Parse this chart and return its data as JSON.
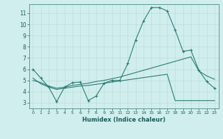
{
  "title": "",
  "xlabel": "Humidex (Indice chaleur)",
  "ylabel": "",
  "bg_color": "#d0eeed",
  "line_color": "#2a7a72",
  "xlim": [
    -0.5,
    23.5
  ],
  "ylim": [
    2.5,
    11.8
  ],
  "yticks": [
    3,
    4,
    5,
    6,
    7,
    8,
    9,
    10,
    11
  ],
  "xticks": [
    0,
    1,
    2,
    3,
    4,
    5,
    6,
    7,
    8,
    9,
    10,
    11,
    12,
    13,
    14,
    15,
    16,
    17,
    18,
    19,
    20,
    21,
    22,
    23
  ],
  "line1_x": [
    0,
    1,
    2,
    3,
    4,
    5,
    6,
    7,
    8,
    9,
    10,
    11,
    12,
    13,
    14,
    15,
    16,
    17,
    18,
    19,
    20,
    21,
    22,
    23
  ],
  "line1_y": [
    6.0,
    5.2,
    4.4,
    3.1,
    4.4,
    4.8,
    4.85,
    3.2,
    3.6,
    4.75,
    5.0,
    5.0,
    6.5,
    8.6,
    10.3,
    11.5,
    11.5,
    11.2,
    9.5,
    7.6,
    7.7,
    5.9,
    4.9,
    4.3
  ],
  "line2_x": [
    0,
    1,
    2,
    3,
    4,
    5,
    6,
    7,
    8,
    9,
    10,
    11,
    12,
    13,
    14,
    15,
    16,
    17,
    18,
    19,
    20,
    21,
    22,
    23
  ],
  "line2_y": [
    5.0,
    4.8,
    4.5,
    4.3,
    4.4,
    4.55,
    4.65,
    4.75,
    4.9,
    5.0,
    5.15,
    5.3,
    5.5,
    5.7,
    5.9,
    6.1,
    6.3,
    6.5,
    6.7,
    6.9,
    7.1,
    5.85,
    5.4,
    5.1
  ],
  "line3_x": [
    0,
    1,
    2,
    3,
    4,
    5,
    6,
    7,
    8,
    9,
    10,
    11,
    12,
    13,
    14,
    15,
    16,
    17,
    18,
    19,
    20,
    21,
    22,
    23
  ],
  "line3_y": [
    5.2,
    4.7,
    4.4,
    4.2,
    4.3,
    4.4,
    4.5,
    4.55,
    4.65,
    4.75,
    4.85,
    4.95,
    5.05,
    5.15,
    5.25,
    5.35,
    5.45,
    5.55,
    3.2,
    3.2,
    3.2,
    3.2,
    3.2,
    3.2
  ]
}
